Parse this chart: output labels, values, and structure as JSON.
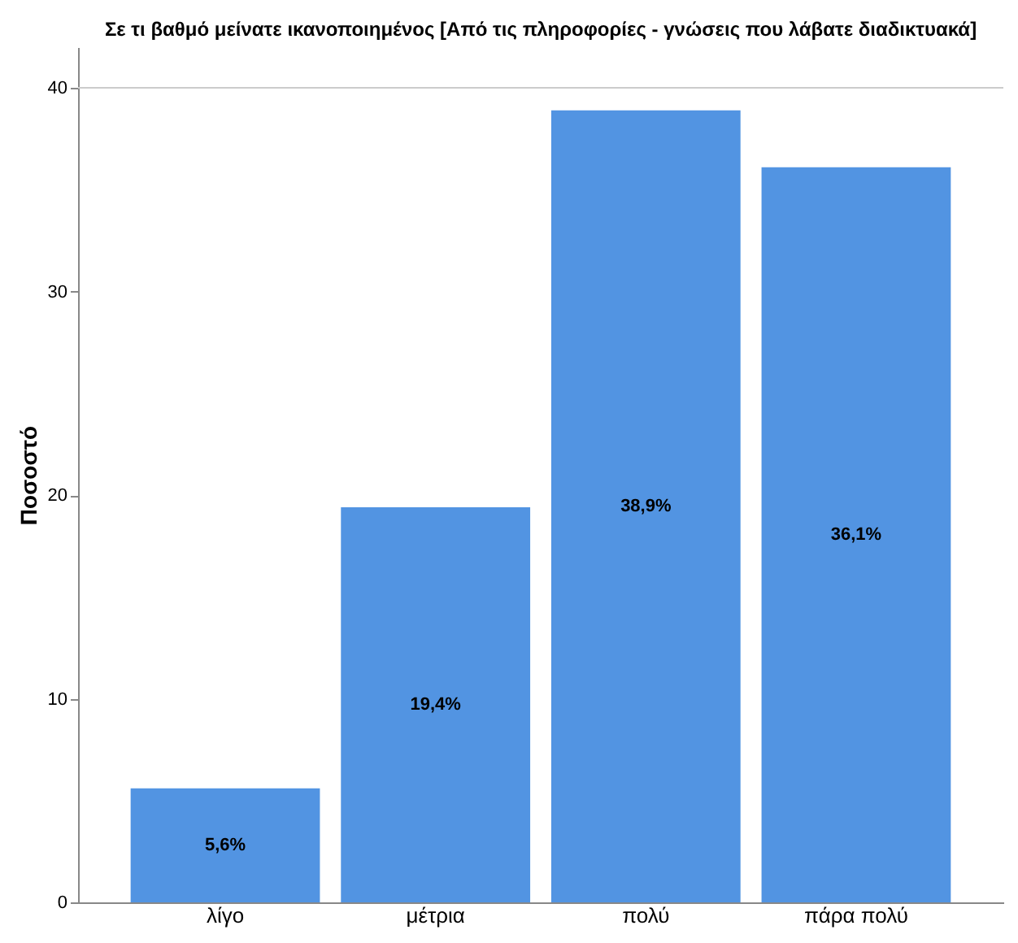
{
  "chart_data": {
    "type": "bar",
    "title": "Σε τι βαθμό μείνατε ικανοποιημένος [Από τις πληροφορίες - γνώσεις που λάβατε διαδικτυακά]",
    "ylabel": "Ποσοστό",
    "categories": [
      "λίγο",
      "μέτρια",
      "πολύ",
      "πάρα πολύ"
    ],
    "values": [
      5.6,
      19.4,
      38.9,
      36.1
    ],
    "value_labels": [
      "5,6%",
      "19,4%",
      "38,9%",
      "36,1%"
    ],
    "color": "#5294e2",
    "ylim": [
      0,
      42
    ],
    "yticks": [
      0,
      10,
      20,
      30,
      40
    ],
    "grid": false,
    "ref_lines": [
      {
        "axis": "y",
        "value": 40,
        "color": "#cccccc"
      }
    ]
  }
}
